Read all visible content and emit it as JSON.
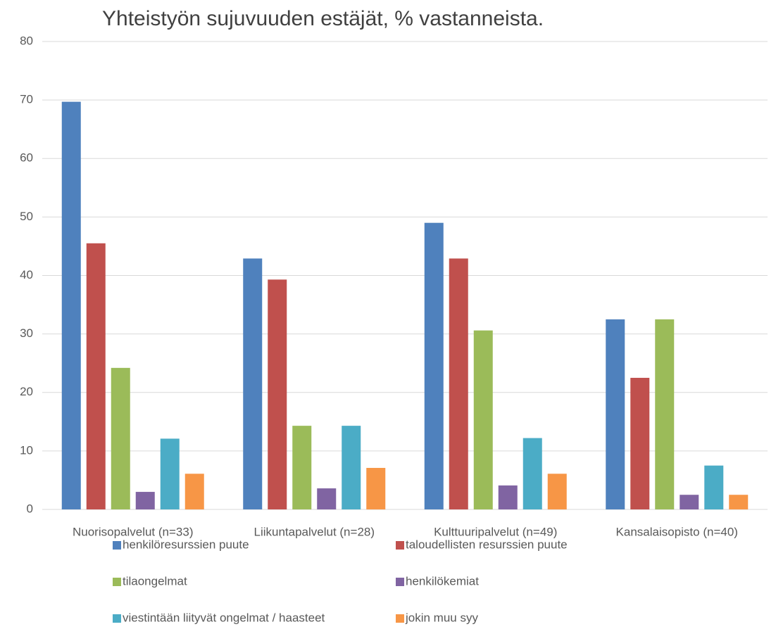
{
  "chart_data": {
    "type": "bar",
    "title": "Yhteistyön sujuvuuden estäjät, % vastanneista.",
    "categories": [
      "Nuorisopalvelut (n=33)",
      "Liikuntapalvelut (n=28)",
      "Kulttuuripalvelut (n=49)",
      "Kansalaisopisto (n=40)"
    ],
    "series": [
      {
        "name": "henkilöresurssien puute",
        "color": "#4f81bd",
        "values": [
          69.7,
          42.9,
          49.0,
          32.5
        ]
      },
      {
        "name": "taloudellisten resurssien puute",
        "color": "#c0504d",
        "values": [
          45.5,
          39.3,
          42.9,
          22.5
        ]
      },
      {
        "name": "tilaongelmat",
        "color": "#9bbb59",
        "values": [
          24.2,
          14.3,
          30.6,
          32.5
        ]
      },
      {
        "name": "henkilökemiat",
        "color": "#8064a2",
        "values": [
          3.0,
          3.6,
          4.1,
          2.5
        ]
      },
      {
        "name": "viestintään liityvät ongelmat / haasteet",
        "color": "#4bacc6",
        "values": [
          12.1,
          14.3,
          12.2,
          7.5
        ]
      },
      {
        "name": "jokin muu syy",
        "color": "#f79646",
        "values": [
          6.1,
          7.1,
          6.1,
          2.5
        ]
      }
    ],
    "ylim": [
      0,
      80
    ],
    "yticks": [
      0,
      10,
      20,
      30,
      40,
      50,
      60,
      70,
      80
    ],
    "grid": true,
    "legend": "bottom"
  }
}
